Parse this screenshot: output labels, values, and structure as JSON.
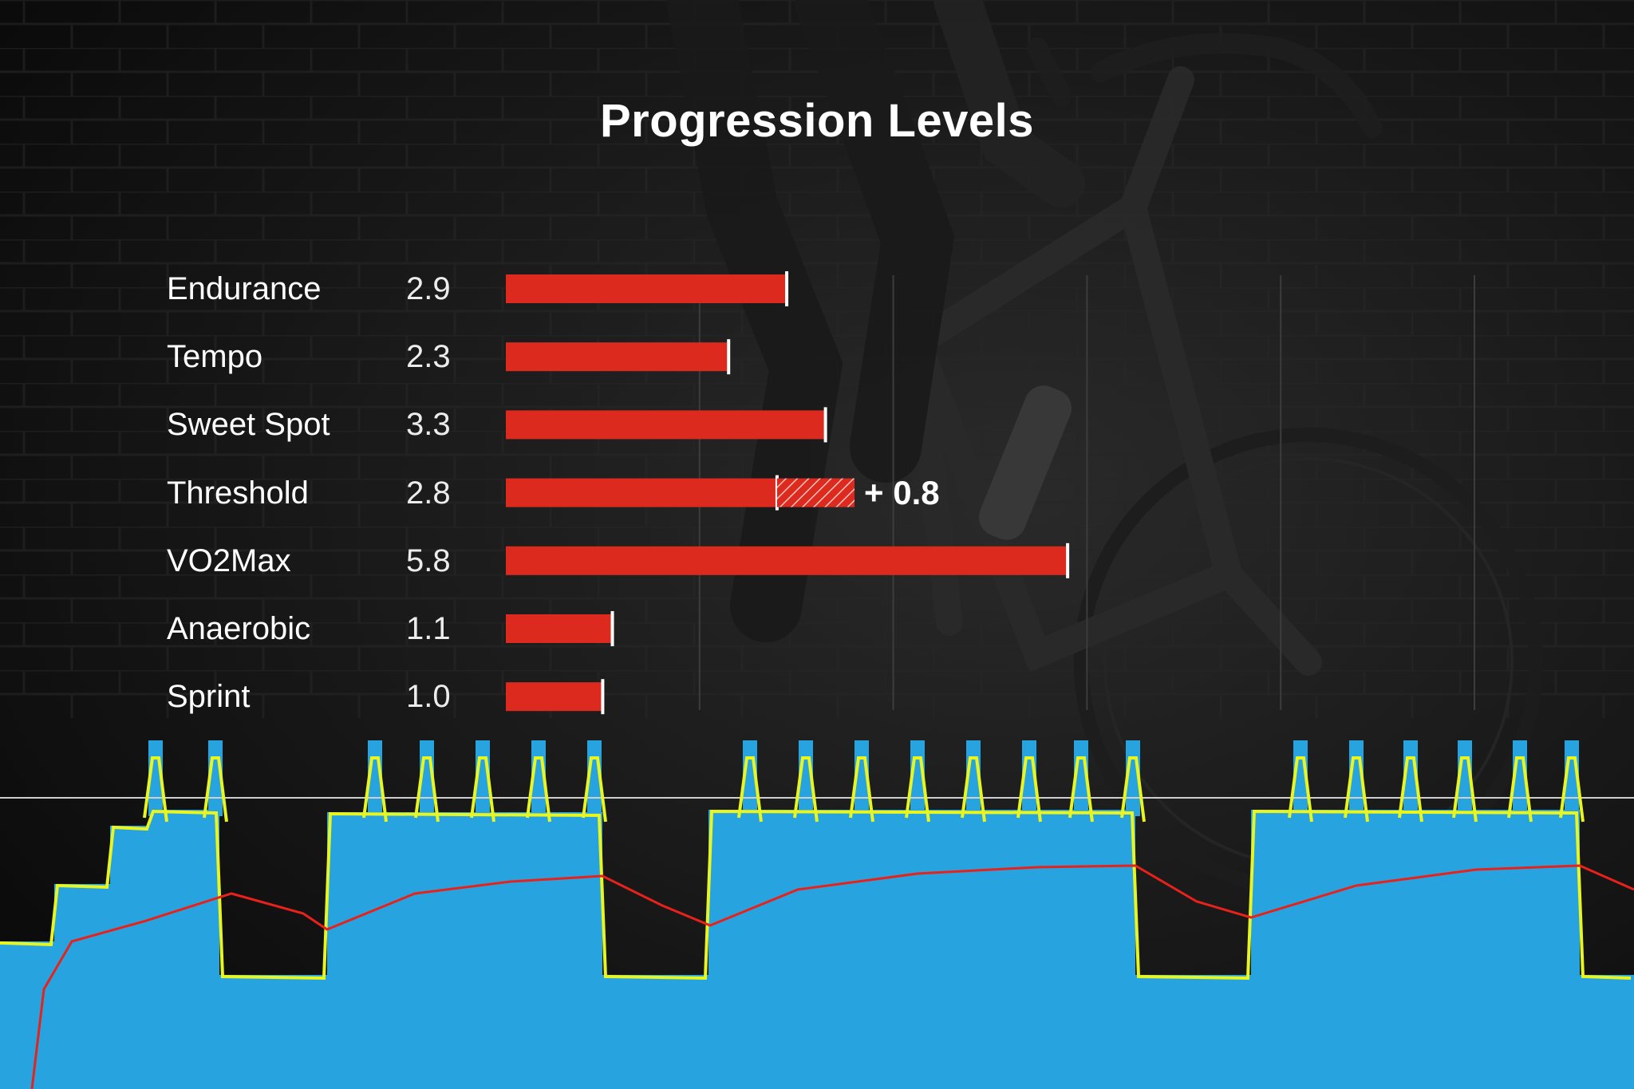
{
  "chart_data": {
    "type": "bar",
    "title": "Progression Levels",
    "orientation": "horizontal",
    "categories": [
      "Endurance",
      "Tempo",
      "Sweet Spot",
      "Threshold",
      "VO2Max",
      "Anaerobic",
      "Sprint"
    ],
    "values": [
      2.9,
      2.3,
      3.3,
      2.8,
      5.8,
      1.1,
      1.0
    ],
    "value_labels": [
      "2.9",
      "2.3",
      "3.3",
      "2.8",
      "5.8",
      "1.1",
      "1.0"
    ],
    "increase": {
      "category": "Threshold",
      "amount": 0.8,
      "label": "+ 0.8"
    },
    "xlim": [
      0,
      10
    ],
    "grid_at": [
      2,
      4,
      6,
      8,
      10
    ],
    "grid": true,
    "bar_color": "#dd2a1f",
    "background": "workout power profile over cyclist photo"
  }
}
